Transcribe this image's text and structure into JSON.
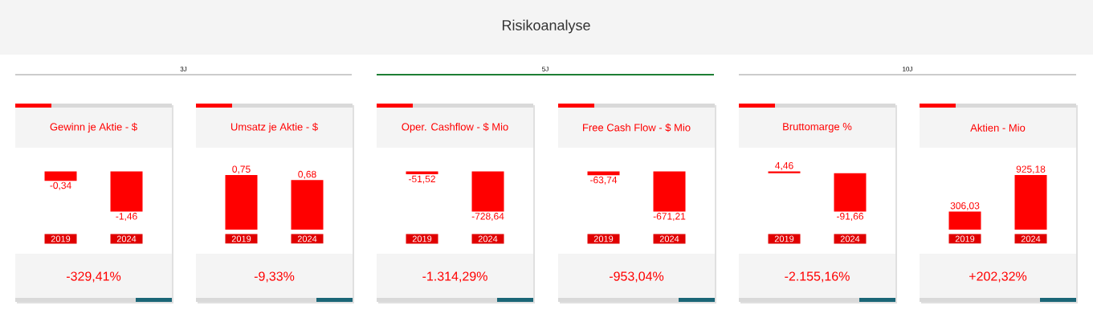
{
  "chart_data": [
    {
      "type": "bar",
      "title": "Gewinn je Aktie - $",
      "categories": [
        "2019",
        "2024"
      ],
      "values": [
        -0.34,
        -1.46
      ],
      "value_labels": [
        "-0,34",
        "-1,46"
      ],
      "color": "#ff0000",
      "annotations": [
        "Risikoanalyse",
        "3J",
        "-329,41%"
      ]
    },
    {
      "type": "bar",
      "title": "Umsatz je Aktie - $",
      "categories": [
        "2019",
        "2024"
      ],
      "values": [
        0.75,
        0.68
      ],
      "value_labels": [
        "0,75",
        "0,68"
      ],
      "color": "#ff0000",
      "annotations": [
        "-9,33%"
      ]
    },
    {
      "type": "bar",
      "title": "Oper. Cashflow - $ Mio",
      "categories": [
        "2019",
        "2024"
      ],
      "values": [
        -51.52,
        -728.64
      ],
      "value_labels": [
        "-51,52",
        "-728,64"
      ],
      "color": "#ff0000",
      "annotations": [
        "5J",
        "-1.314,29%"
      ]
    },
    {
      "type": "bar",
      "title": "Free Cash Flow - $ Mio",
      "categories": [
        "2019",
        "2024"
      ],
      "values": [
        -63.74,
        -671.21
      ],
      "value_labels": [
        "-63,74",
        "-671,21"
      ],
      "color": "#ff0000",
      "annotations": [
        "-953,04%"
      ]
    },
    {
      "type": "bar",
      "title": "Bruttomarge %",
      "categories": [
        "2019",
        "2024"
      ],
      "values": [
        4.46,
        -91.66
      ],
      "value_labels": [
        "4,46",
        "-91,66"
      ],
      "color": "#ff0000",
      "annotations": [
        "10J",
        "-2.155,16%"
      ]
    },
    {
      "type": "bar",
      "title": "Aktien - Mio",
      "categories": [
        "2019",
        "2024"
      ],
      "values": [
        306.03,
        925.18
      ],
      "value_labels": [
        "306,03",
        "925,18"
      ],
      "color": "#ff0000",
      "annotations": [
        "+202,32%"
      ]
    }
  ]
}
